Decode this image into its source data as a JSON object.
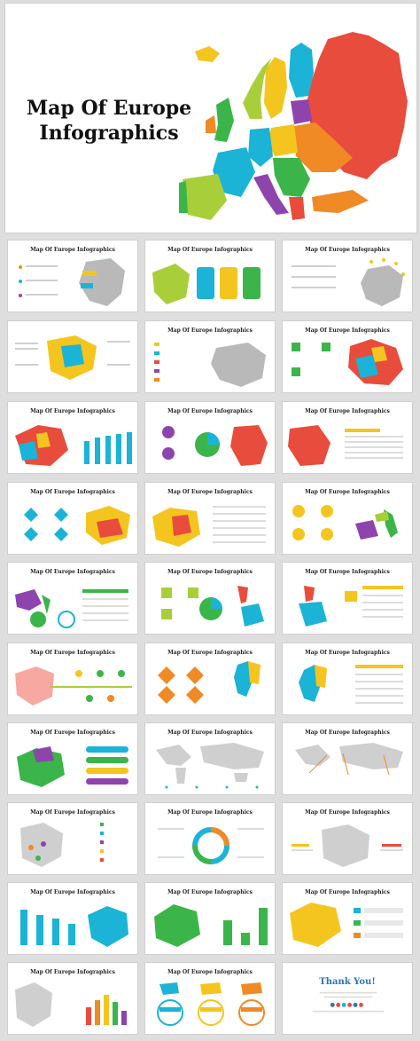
{
  "hero": {
    "title": "Map Of Europe Infographics"
  },
  "slides": [
    {
      "title": "Map Of Europe Infographics",
      "kind": "map-callouts"
    },
    {
      "title": "Map Of Europe Infographics",
      "kind": "map-badges"
    },
    {
      "title": "Map Of Europe Infographics",
      "kind": "map-stars"
    },
    {
      "title": "",
      "kind": "map-text-left"
    },
    {
      "title": "Map Of Europe Infographics",
      "kind": "map-flags"
    },
    {
      "title": "Map Of Europe Infographics",
      "kind": "map-icons"
    },
    {
      "title": "Map Of Europe Infographics",
      "kind": "map-bars"
    },
    {
      "title": "Map Of Europe Infographics",
      "kind": "region-eastern-pie"
    },
    {
      "title": "Map Of Europe Infographics",
      "kind": "region-eastern-list"
    },
    {
      "title": "Map Of Europe Infographics",
      "kind": "region-central-diamonds"
    },
    {
      "title": "Map Of Europe Infographics",
      "kind": "region-central-list"
    },
    {
      "title": "Map Of Europe Infographics",
      "kind": "region-southern-icons"
    },
    {
      "title": "Map Of Europe Infographics",
      "kind": "region-southern-list"
    },
    {
      "title": "Map Of Europe Infographics",
      "kind": "region-western-pie"
    },
    {
      "title": "Map Of Europe Infographics",
      "kind": "region-western-list"
    },
    {
      "title": "Map Of Europe Infographics",
      "kind": "map-dots-circles"
    },
    {
      "title": "Map Of Europe Infographics",
      "kind": "region-northern-diamonds"
    },
    {
      "title": "Map Of Europe Infographics",
      "kind": "region-northern-list"
    },
    {
      "title": "Map Of Europe Infographics",
      "kind": "map-pills"
    },
    {
      "title": "Map Of Europe Infographics",
      "kind": "world-transport"
    },
    {
      "title": "Map Of Europe Infographics",
      "kind": "world-callouts"
    },
    {
      "title": "Map Of Europe Infographics",
      "kind": "map-pins"
    },
    {
      "title": "Map Of Europe Infographics",
      "kind": "donut-stats"
    },
    {
      "title": "Map Of Europe Infographics",
      "kind": "map-two-labels"
    },
    {
      "title": "Map Of Europe Infographics",
      "kind": "bars-map-blue"
    },
    {
      "title": "Map Of Europe Infographics",
      "kind": "map-green-bars"
    },
    {
      "title": "Map Of Europe Infographics",
      "kind": "map-yellow-list"
    },
    {
      "title": "Map Of Europe Infographics",
      "kind": "map-colored-bars"
    },
    {
      "title": "Map Of Europe Infographics",
      "kind": "three-maps-circles"
    },
    {
      "title": "Thank You!",
      "kind": "thank-you"
    }
  ],
  "palette": {
    "red": "#e84c3d",
    "blue": "#1bb3d6",
    "yellow": "#f4c51f",
    "green": "#3bb54a",
    "orange": "#f08a24",
    "purple": "#8e44ad",
    "lime": "#a8cf3a",
    "gray": "#b9b9b9"
  }
}
